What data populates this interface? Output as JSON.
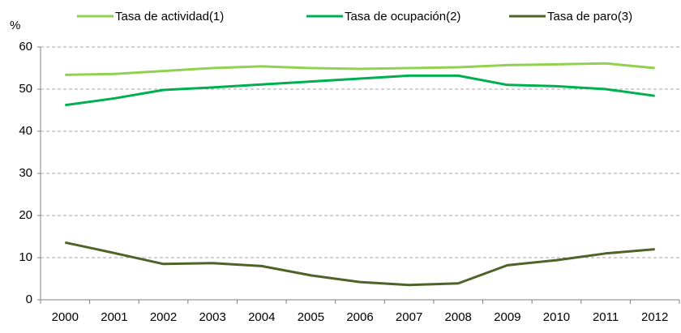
{
  "chart_data": {
    "type": "line",
    "y_label": "%",
    "categories": [
      "2000",
      "2001",
      "2002",
      "2003",
      "2004",
      "2005",
      "2006",
      "2007",
      "2008",
      "2009",
      "2010",
      "2011",
      "2012"
    ],
    "series": [
      {
        "name": "Tasa de actividad(1)",
        "color": "#92d050",
        "values": [
          53.4,
          53.6,
          54.3,
          55.0,
          55.4,
          55.0,
          54.8,
          55.0,
          55.2,
          55.7,
          55.9,
          56.1,
          55.0
        ]
      },
      {
        "name": "Tasa de ocupación(2)",
        "color": "#00b050",
        "values": [
          46.2,
          47.8,
          49.8,
          50.4,
          51.1,
          51.8,
          52.5,
          53.2,
          53.2,
          51.0,
          50.7,
          50.0,
          48.4
        ]
      },
      {
        "name": "Tasa de paro(3)",
        "color": "#4f6228",
        "values": [
          13.6,
          11.1,
          8.5,
          8.7,
          8.0,
          5.8,
          4.2,
          3.5,
          3.9,
          8.2,
          9.4,
          11.0,
          12.0
        ]
      }
    ],
    "ylim": [
      0,
      60
    ],
    "yticks": [
      0,
      10,
      20,
      30,
      40,
      50,
      60
    ],
    "grid": true,
    "legend": "top"
  }
}
